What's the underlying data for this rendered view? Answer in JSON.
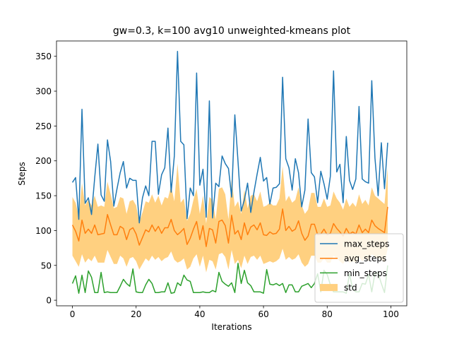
{
  "chart_data": {
    "type": "line",
    "title": "gw=0.3, k=100 avg10 unweighted-kmeans plot",
    "xlabel": "Iterations",
    "ylabel": "Steps",
    "xlim": [
      -5,
      105
    ],
    "ylim": [
      -8,
      372
    ],
    "xticks": [
      0,
      20,
      40,
      60,
      80,
      100
    ],
    "yticks": [
      0,
      50,
      100,
      150,
      200,
      250,
      300,
      350
    ],
    "grid": false,
    "legend_position": "lower-right",
    "colors": {
      "max_steps": "#1f77b4",
      "avg_steps": "#ff7f0e",
      "min_steps": "#2ca02c",
      "std": "#ffd080"
    },
    "x": [
      0,
      1,
      2,
      3,
      4,
      5,
      6,
      7,
      8,
      9,
      10,
      11,
      12,
      13,
      14,
      15,
      16,
      17,
      18,
      19,
      20,
      21,
      22,
      23,
      24,
      25,
      26,
      27,
      28,
      29,
      30,
      31,
      32,
      33,
      34,
      35,
      36,
      37,
      38,
      39,
      40,
      41,
      42,
      43,
      44,
      45,
      46,
      47,
      48,
      49,
      50,
      51,
      52,
      53,
      54,
      55,
      56,
      57,
      58,
      59,
      60,
      61,
      62,
      63,
      64,
      65,
      66,
      67,
      68,
      69,
      70,
      71,
      72,
      73,
      74,
      75,
      76,
      77,
      78,
      79,
      80,
      81,
      82,
      83,
      84,
      85,
      86,
      87,
      88,
      89,
      90,
      91,
      92,
      93,
      94,
      95,
      96,
      97,
      98,
      99
    ],
    "series": [
      {
        "name": "max_steps",
        "values": [
          169,
          176,
          116,
          274,
          139,
          147,
          123,
          176,
          224,
          151,
          142,
          230,
          199,
          135,
          160,
          183,
          199,
          161,
          175,
          172,
          172,
          111,
          147,
          164,
          150,
          228,
          228,
          152,
          180,
          190,
          247,
          155,
          207,
          357,
          228,
          223,
          117,
          161,
          150,
          326,
          165,
          188,
          119,
          286,
          118,
          168,
          163,
          207,
          196,
          189,
          148,
          266,
          199,
          128,
          144,
          168,
          126,
          155,
          181,
          205,
          171,
          176,
          138,
          161,
          162,
          167,
          320,
          203,
          190,
          158,
          203,
          183,
          134,
          158,
          260,
          183,
          177,
          140,
          185,
          167,
          145,
          178,
          329,
          184,
          195,
          140,
          235,
          172,
          159,
          174,
          278,
          174,
          170,
          168,
          315,
          204,
          150,
          226,
          160,
          226
        ]
      },
      {
        "name": "avg_steps",
        "values": [
          108,
          99,
          85,
          115,
          96,
          102,
          96,
          108,
          94,
          95,
          96,
          123,
          108,
          94,
          94,
          106,
          103,
          87,
          101,
          104,
          95,
          79,
          90,
          101,
          98,
          108,
          99,
          106,
          96,
          104,
          104,
          116,
          100,
          94,
          98,
          103,
          80,
          89,
          102,
          113,
          87,
          107,
          77,
          103,
          101,
          82,
          113,
          115,
          107,
          82,
          122,
          95,
          100,
          87,
          111,
          94,
          105,
          108,
          101,
          111,
          94,
          93,
          98,
          95,
          96,
          102,
          131,
          100,
          106,
          99,
          102,
          114,
          96,
          86,
          92,
          109,
          109,
          94,
          95,
          102,
          94,
          96,
          110,
          103,
          98,
          92,
          103,
          95,
          98,
          95,
          108,
          97,
          102,
          97,
          115,
          107,
          103,
          100,
          97,
          134
        ]
      },
      {
        "name": "min_steps",
        "values": [
          24,
          35,
          10,
          36,
          11,
          42,
          33,
          11,
          11,
          40,
          11,
          12,
          11,
          11,
          11,
          20,
          30,
          24,
          20,
          45,
          12,
          11,
          11,
          22,
          30,
          24,
          11,
          11,
          12,
          12,
          25,
          10,
          11,
          25,
          21,
          36,
          29,
          27,
          11,
          11,
          11,
          12,
          11,
          11,
          14,
          12,
          40,
          27,
          23,
          20,
          25,
          11,
          53,
          24,
          43,
          25,
          21,
          12,
          12,
          12,
          10,
          44,
          23,
          22,
          24,
          21,
          24,
          11,
          22,
          22,
          12,
          12,
          20,
          22,
          24,
          18,
          24,
          38,
          12,
          43,
          37,
          22,
          12,
          12,
          12,
          12,
          10,
          38,
          16,
          12,
          12,
          24,
          23,
          37,
          12,
          39,
          39,
          24,
          11,
          50
        ]
      }
    ],
    "band": {
      "name": "std",
      "lower": [
        64,
        56,
        48,
        66,
        54,
        60,
        56,
        64,
        54,
        54,
        54,
        72,
        62,
        52,
        52,
        64,
        60,
        48,
        60,
        62,
        56,
        44,
        52,
        60,
        56,
        64,
        58,
        62,
        56,
        60,
        62,
        70,
        58,
        54,
        56,
        60,
        44,
        48,
        60,
        66,
        48,
        64,
        40,
        58,
        56,
        44,
        66,
        68,
        62,
        44,
        72,
        52,
        58,
        46,
        64,
        52,
        62,
        64,
        58,
        64,
        52,
        54,
        56,
        54,
        56,
        60,
        74,
        58,
        62,
        58,
        60,
        66,
        54,
        48,
        52,
        64,
        64,
        54,
        54,
        60,
        54,
        54,
        64,
        60,
        56,
        52,
        60,
        54,
        56,
        54,
        62,
        56,
        60,
        56,
        66,
        62,
        60,
        58,
        54,
        74
      ],
      "upper": [
        148,
        140,
        120,
        168,
        136,
        144,
        136,
        150,
        134,
        136,
        134,
        170,
        152,
        132,
        134,
        148,
        146,
        124,
        142,
        144,
        136,
        112,
        126,
        142,
        140,
        152,
        140,
        150,
        136,
        148,
        146,
        164,
        142,
        196,
        140,
        146,
        114,
        124,
        144,
        160,
        124,
        150,
        110,
        148,
        144,
        116,
        160,
        162,
        152,
        116,
        174,
        134,
        142,
        124,
        158,
        132,
        150,
        152,
        142,
        156,
        134,
        136,
        140,
        136,
        136,
        146,
        192,
        142,
        150,
        140,
        144,
        162,
        136,
        124,
        130,
        154,
        154,
        134,
        134,
        146,
        134,
        136,
        156,
        146,
        140,
        130,
        146,
        134,
        140,
        134,
        152,
        138,
        144,
        136,
        162,
        150,
        146,
        142,
        138,
        190
      ]
    }
  }
}
